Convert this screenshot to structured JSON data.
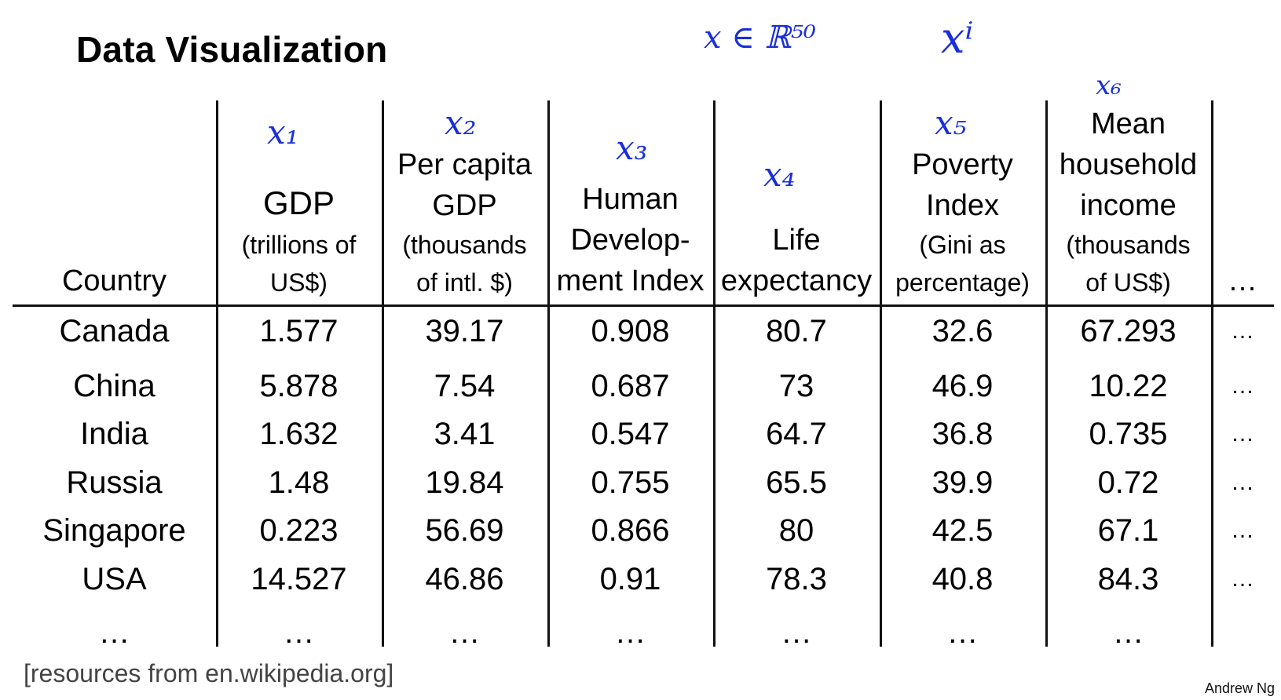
{
  "title": "Data Visualization",
  "annotations": {
    "space": "x ∈ ℝ⁵⁰",
    "instance": "xⁱ",
    "features": [
      "x₁",
      "x₂",
      "x₃",
      "x₄",
      "x₅",
      "x₆"
    ]
  },
  "table": {
    "headers": [
      {
        "main": [
          "Country"
        ],
        "sub": []
      },
      {
        "main": [
          "GDP"
        ],
        "sub": [
          "(trillions of",
          "US$)"
        ]
      },
      {
        "main": [
          "Per capita",
          "GDP"
        ],
        "sub": [
          "(thousands",
          "of intl. $)"
        ]
      },
      {
        "main": [
          "Human",
          "Develop-",
          "ment Index"
        ],
        "sub": []
      },
      {
        "main": [
          "Life",
          "expectancy"
        ],
        "sub": []
      },
      {
        "main": [
          "Poverty",
          "Index"
        ],
        "sub": [
          "(Gini as",
          "percentage)"
        ]
      },
      {
        "main": [
          "Mean",
          "household",
          "income"
        ],
        "sub": [
          "(thousands",
          "of US$)"
        ]
      },
      {
        "main": [
          "…"
        ],
        "sub": []
      }
    ],
    "rows": [
      [
        "Canada",
        "1.577",
        "39.17",
        "0.908",
        "80.7",
        "32.6",
        "67.293",
        "…"
      ],
      [
        "China",
        "5.878",
        "7.54",
        "0.687",
        "73",
        "46.9",
        "10.22",
        "…"
      ],
      [
        "India",
        "1.632",
        "3.41",
        "0.547",
        "64.7",
        "36.8",
        "0.735",
        "…"
      ],
      [
        "Russia",
        "1.48",
        "19.84",
        "0.755",
        "65.5",
        "39.9",
        "0.72",
        "…"
      ],
      [
        "Singapore",
        "0.223",
        "56.69",
        "0.866",
        "80",
        "42.5",
        "67.1",
        "…"
      ],
      [
        "USA",
        "14.527",
        "46.86",
        "0.91",
        "78.3",
        "40.8",
        "84.3",
        "…"
      ],
      [
        "…",
        "…",
        "…",
        "…",
        "…",
        "…",
        "…",
        ""
      ]
    ]
  },
  "source": "[resources from en.wikipedia.org]",
  "author": "Andrew Ng",
  "colors": {
    "ink": "#1a2fd8",
    "text": "#000000",
    "rule": "#111111"
  }
}
